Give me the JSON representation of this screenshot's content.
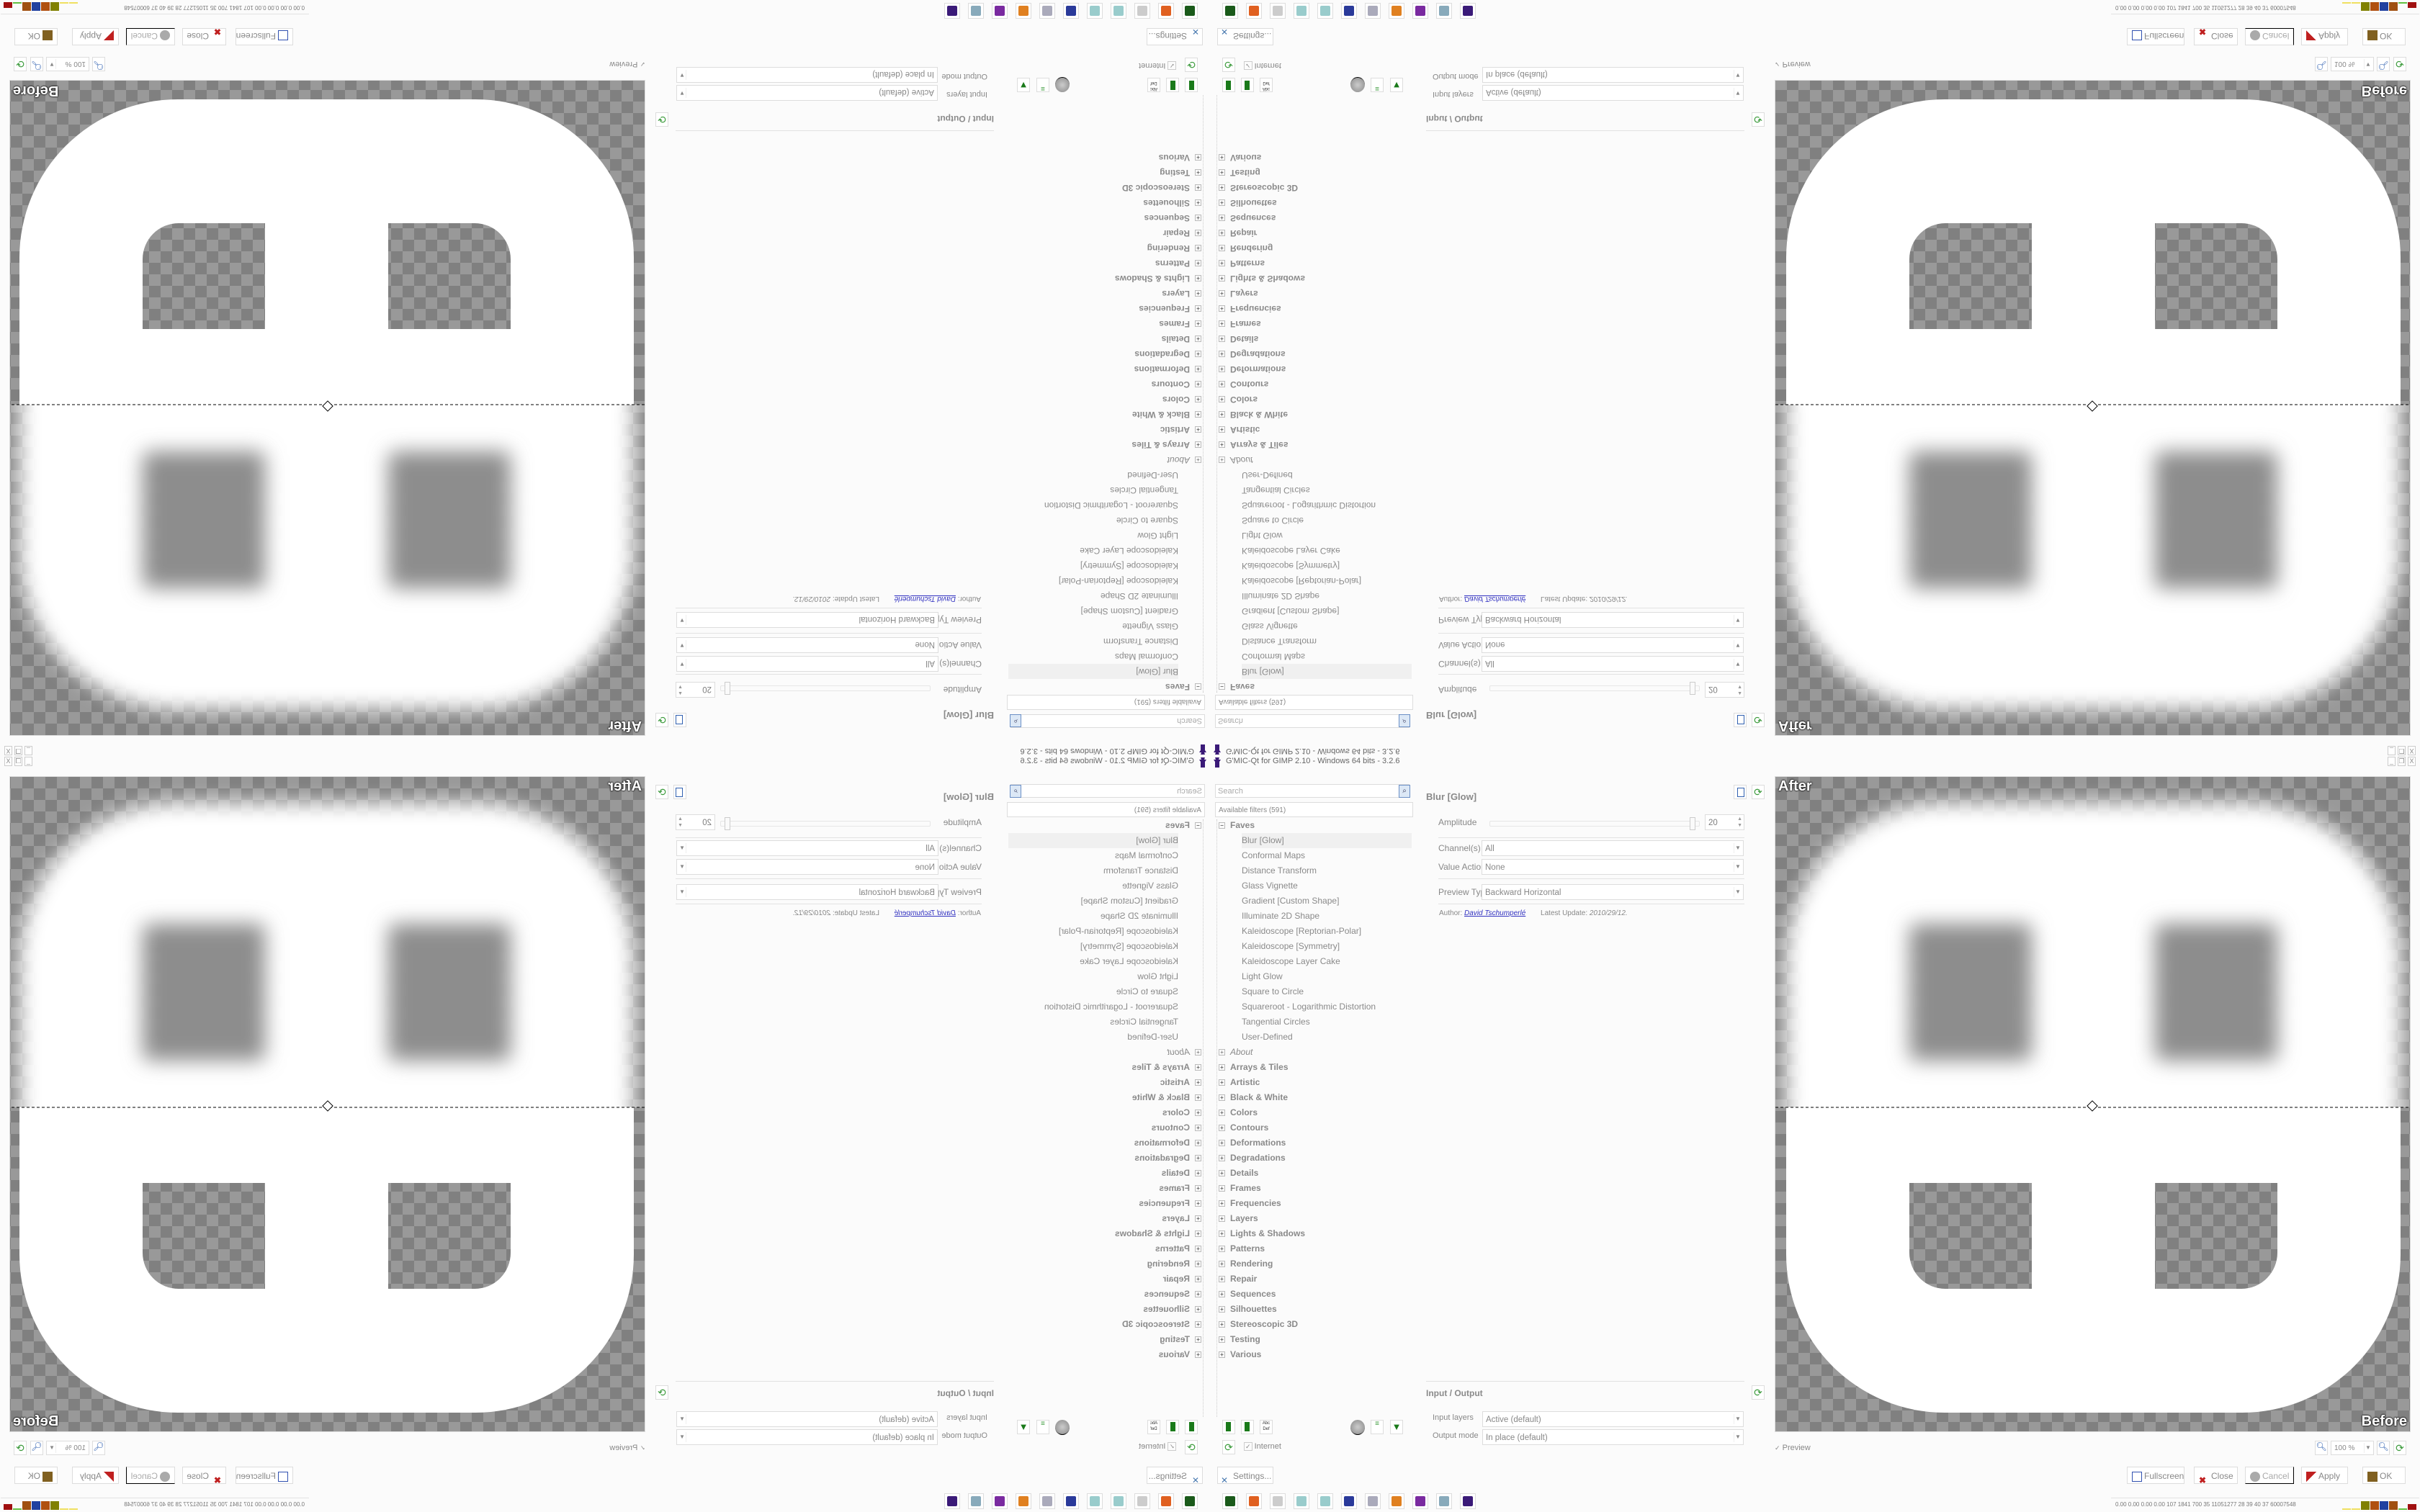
{
  "window": {
    "title": "G'MIC-Qt for GIMP 2.10 - Windows 64 bits - 3.2.6",
    "controls": [
      "_",
      "❐",
      "X"
    ]
  },
  "filters": {
    "search_placeholder": "Search",
    "available": "Available filters (591)",
    "faves_label": "Faves",
    "faves": [
      "Blur [Glow]",
      "Conformal Maps",
      "Distance Transform",
      "Glass Vignette",
      "Gradient [Custom Shape]",
      "Illuminate 2D Shape",
      "Kaleidoscope [Reptorian-Polar]",
      "Kaleidoscope [Symmetry]",
      "Kaleidoscope Layer Cake",
      "Light Glow",
      "Square to Circle",
      "Squareroot - Logarithmic Distortion",
      "Tangential Circles",
      "User-Defined"
    ],
    "categories": [
      "About",
      "Arrays & Tiles",
      "Artistic",
      "Black & White",
      "Colors",
      "Contours",
      "Deformations",
      "Degradations",
      "Details",
      "Frames",
      "Frequencies",
      "Layers",
      "Lights & Shadows",
      "Patterns",
      "Rendering",
      "Repair",
      "Sequences",
      "Silhouettes",
      "Stereoscopic 3D",
      "Testing",
      "Various"
    ],
    "internet_label": "Internet",
    "settings_label": "Settings..."
  },
  "filter": {
    "title": "Blur [Glow]",
    "amplitude_label": "Amplitude",
    "amplitude_value": "20",
    "amplitude_fraction": 0.97,
    "channels_label": "Channel(s)",
    "channels_value": "All",
    "value_action_label": "Value Action",
    "value_action_value": "None",
    "preview_type_label": "Preview Type",
    "preview_type_value": "Backward Horizontal",
    "author_label": "Author:",
    "author_name": "David Tschumperlé",
    "update_label": "Latest Update:",
    "update_value": "2010/29/12."
  },
  "io": {
    "title": "Input / Output",
    "input_label": "Input layers",
    "input_value": "Active (default)",
    "output_label": "Output mode",
    "output_value": "In place (default)"
  },
  "preview": {
    "after_label": "After",
    "before_label": "Before",
    "checkbox_label": "Preview",
    "zoom_value": "100 %"
  },
  "buttons": {
    "fullscreen": "Fullscreen",
    "close": "Close",
    "cancel": "Cancel",
    "apply": "Apply",
    "ok": "OK"
  },
  "status": {
    "text": "0.00 0.00 0.00 0.00 107 1841 700 35 11051277 28 39 40 37 60007548",
    "bar_colors": [
      "#f0e060",
      "#f0e060",
      "#808000",
      "#b05010",
      "#2040a0",
      "#a05010",
      "#60c040",
      "#a01010"
    ],
    "purple": "#6020a0"
  },
  "colors": {
    "link": "#3030c0",
    "accent_green": "#3a9a3a"
  },
  "taskbar": [
    "terminal-icon",
    "firefox-icon",
    "app-icon",
    "notepad-icon",
    "notepad-icon",
    "floppy-64-icon",
    "scroll-icon",
    "blender-icon",
    "mascot-icon",
    "calculator-icon",
    "gmic-wizard-icon"
  ]
}
